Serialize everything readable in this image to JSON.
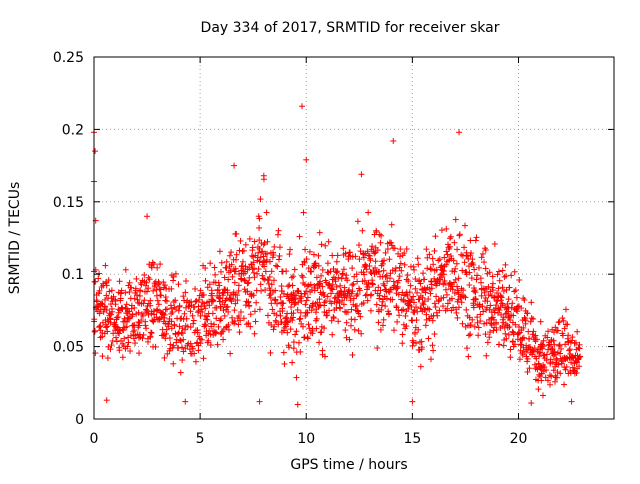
{
  "chart_data": {
    "type": "scatter",
    "title": "Day 334 of 2017, SRMTID for receiver skar",
    "xlabel": "GPS time / hours",
    "ylabel": "SRMTID / TECUs",
    "xlim": [
      0,
      24.5
    ],
    "ylim": [
      0,
      0.25
    ],
    "x_ticks": [
      0,
      5,
      10,
      15,
      20
    ],
    "x_tick_labels": [
      "0",
      "5",
      "10",
      "15",
      "20"
    ],
    "y_ticks": [
      0,
      0.05,
      0.1,
      0.15,
      0.2,
      0.25
    ],
    "y_tick_labels": [
      "0",
      "0.05",
      "0.1",
      "0.15",
      "0.2",
      "0.25"
    ],
    "grid": true,
    "marker": "+",
    "color": "#ff0000",
    "series": [
      {
        "name": "skar",
        "sample_interval_hours": 0.02,
        "time_range_hours": [
          0,
          22.9
        ],
        "notable_points": [
          {
            "x": 0.0,
            "y": 0.198
          },
          {
            "x": 0.0,
            "y": 0.164
          },
          {
            "x": 0.05,
            "y": 0.185
          },
          {
            "x": 0.08,
            "y": 0.137
          },
          {
            "x": 0.6,
            "y": 0.013
          },
          {
            "x": 2.5,
            "y": 0.14
          },
          {
            "x": 4.3,
            "y": 0.012
          },
          {
            "x": 6.6,
            "y": 0.175
          },
          {
            "x": 7.8,
            "y": 0.012
          },
          {
            "x": 8.0,
            "y": 0.168
          },
          {
            "x": 9.6,
            "y": 0.01
          },
          {
            "x": 9.8,
            "y": 0.216
          },
          {
            "x": 10.0,
            "y": 0.179
          },
          {
            "x": 12.6,
            "y": 0.169
          },
          {
            "x": 14.1,
            "y": 0.192
          },
          {
            "x": 15.0,
            "y": 0.012
          },
          {
            "x": 17.2,
            "y": 0.198
          },
          {
            "x": 20.6,
            "y": 0.011
          },
          {
            "x": 22.5,
            "y": 0.012
          }
        ],
        "envelope": [
          {
            "x": 0,
            "y": [
              0.04,
              0.12
            ]
          },
          {
            "x": 1,
            "y": [
              0.03,
              0.1
            ]
          },
          {
            "x": 2,
            "y": [
              0.04,
              0.11
            ]
          },
          {
            "x": 3,
            "y": [
              0.04,
              0.12
            ]
          },
          {
            "x": 4,
            "y": [
              0.03,
              0.1
            ]
          },
          {
            "x": 5,
            "y": [
              0.03,
              0.11
            ]
          },
          {
            "x": 6,
            "y": [
              0.04,
              0.12
            ]
          },
          {
            "x": 7,
            "y": [
              0.05,
              0.14
            ]
          },
          {
            "x": 8,
            "y": [
              0.05,
              0.16
            ]
          },
          {
            "x": 9,
            "y": [
              0.03,
              0.12
            ]
          },
          {
            "x": 10,
            "y": [
              0.04,
              0.14
            ]
          },
          {
            "x": 11,
            "y": [
              0.04,
              0.13
            ]
          },
          {
            "x": 12,
            "y": [
              0.04,
              0.13
            ]
          },
          {
            "x": 13,
            "y": [
              0.05,
              0.15
            ]
          },
          {
            "x": 14,
            "y": [
              0.05,
              0.14
            ]
          },
          {
            "x": 15,
            "y": [
              0.03,
              0.12
            ]
          },
          {
            "x": 16,
            "y": [
              0.04,
              0.13
            ]
          },
          {
            "x": 17,
            "y": [
              0.05,
              0.16
            ]
          },
          {
            "x": 18,
            "y": [
              0.04,
              0.13
            ]
          },
          {
            "x": 19,
            "y": [
              0.04,
              0.12
            ]
          },
          {
            "x": 20,
            "y": [
              0.03,
              0.11
            ]
          },
          {
            "x": 21,
            "y": [
              0.01,
              0.07
            ]
          },
          {
            "x": 22,
            "y": [
              0.02,
              0.08
            ]
          },
          {
            "x": 22.9,
            "y": [
              0.02,
              0.06
            ]
          }
        ]
      }
    ]
  }
}
